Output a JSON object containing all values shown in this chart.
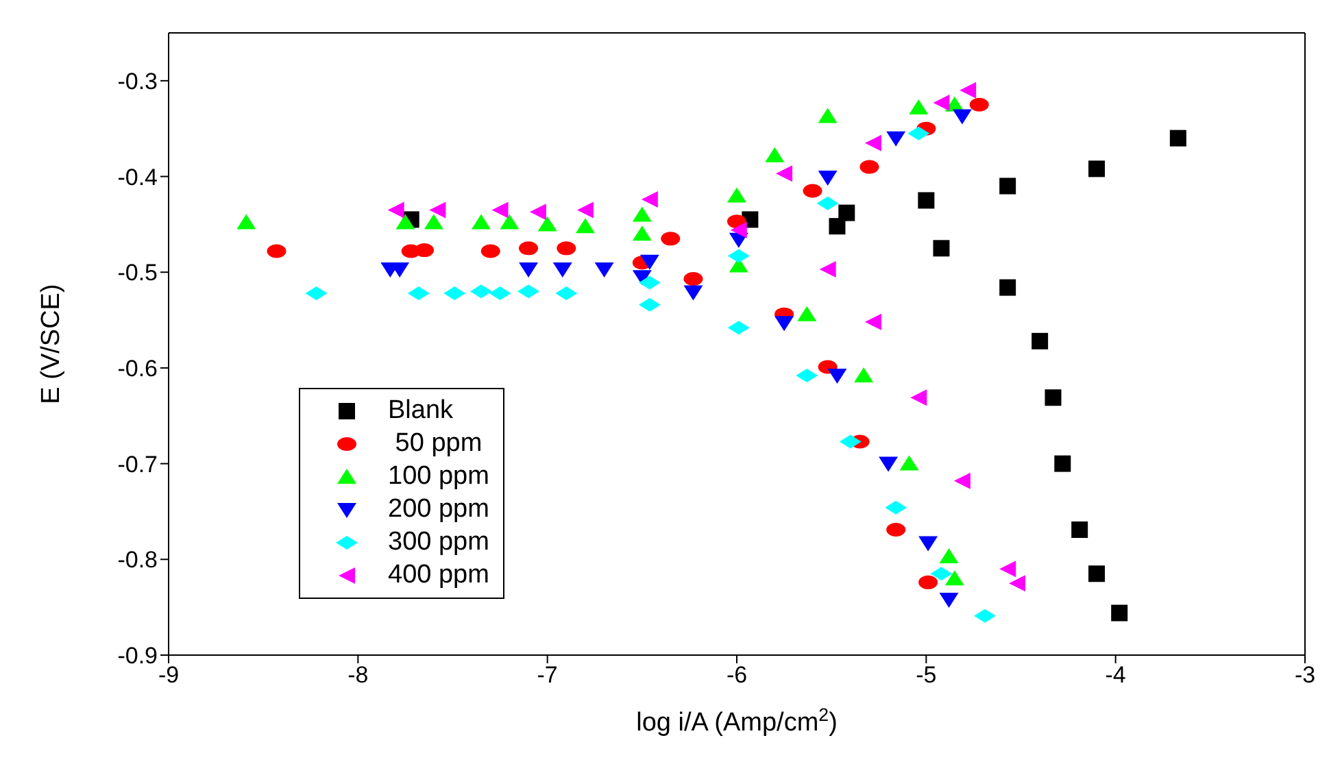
{
  "chart_data": {
    "type": "scatter",
    "xlabel": "log i/A (Amp/cm$^{2}$)",
    "ylabel": "E (V/SCE)",
    "xlim": [
      -9,
      -3
    ],
    "xticks": [
      -9,
      -8,
      -7,
      -6,
      -5,
      -4,
      -3
    ],
    "ylim": [
      -0.9,
      -0.25
    ],
    "yticks": [
      -0.9,
      -0.8,
      -0.7,
      -0.6,
      -0.5,
      -0.4,
      -0.3
    ],
    "legend": "bottom left",
    "series": [
      {
        "name": "Blank",
        "color": "#000000",
        "marker": "square",
        "x": [
          -7.72,
          -5.93,
          -5.42,
          -5.0,
          -4.57,
          -4.1,
          -3.67,
          -5.47,
          -4.92,
          -4.57,
          -4.4,
          -4.33,
          -4.28,
          -4.19,
          -4.1,
          -3.98
        ],
        "values": [
          -0.445,
          -0.445,
          -0.438,
          -0.425,
          -0.41,
          -0.392,
          -0.36,
          -0.452,
          -0.475,
          -0.516,
          -0.572,
          -0.631,
          -0.7,
          -0.769,
          -0.815,
          -0.856
        ]
      },
      {
        "name": " 50 ppm",
        "color": "#ff0000",
        "marker": "circle",
        "x": [
          -8.43,
          -7.72,
          -7.65,
          -7.3,
          -7.1,
          -6.9,
          -6.35,
          -6.0,
          -5.6,
          -5.3,
          -5.0,
          -4.72,
          -6.5,
          -6.23,
          -5.75,
          -5.52,
          -5.35,
          -5.16,
          -4.99
        ],
        "values": [
          -0.478,
          -0.478,
          -0.477,
          -0.478,
          -0.475,
          -0.475,
          -0.465,
          -0.447,
          -0.415,
          -0.39,
          -0.35,
          -0.325,
          -0.49,
          -0.507,
          -0.544,
          -0.599,
          -0.677,
          -0.769,
          -0.824
        ]
      },
      {
        "name": "100 ppm",
        "color": "#00ff00",
        "marker": "triangle",
        "x": [
          -8.59,
          -7.75,
          -7.6,
          -7.35,
          -7.2,
          -7.0,
          -6.8,
          -6.5,
          -6.0,
          -5.8,
          -5.52,
          -5.04,
          -4.85,
          -6.5,
          -5.99,
          -5.63,
          -5.33,
          -5.09,
          -4.88,
          -4.85
        ],
        "values": [
          -0.448,
          -0.448,
          -0.448,
          -0.448,
          -0.448,
          -0.45,
          -0.452,
          -0.44,
          -0.42,
          -0.378,
          -0.337,
          -0.328,
          -0.325,
          -0.46,
          -0.493,
          -0.544,
          -0.608,
          -0.7,
          -0.797,
          -0.82
        ]
      },
      {
        "name": "200 ppm",
        "color": "#0000ff",
        "marker": "triangle-down",
        "x": [
          -7.83,
          -7.78,
          -7.1,
          -6.92,
          -6.7,
          -6.46,
          -5.99,
          -5.52,
          -5.16,
          -4.81,
          -6.5,
          -6.23,
          -5.75,
          -5.47,
          -5.2,
          -4.99,
          -4.88
        ],
        "values": [
          -0.497,
          -0.497,
          -0.497,
          -0.497,
          -0.497,
          -0.489,
          -0.466,
          -0.401,
          -0.36,
          -0.337,
          -0.505,
          -0.521,
          -0.553,
          -0.608,
          -0.7,
          -0.783,
          -0.842
        ]
      },
      {
        "name": "300 ppm",
        "color": "#00ffff",
        "marker": "diamond",
        "x": [
          -8.22,
          -7.68,
          -7.49,
          -7.35,
          -7.25,
          -7.1,
          -6.9,
          -6.46,
          -5.99,
          -5.52,
          -5.04,
          -6.46,
          -5.99,
          -5.63,
          -5.4,
          -5.16,
          -4.92,
          -4.69
        ],
        "values": [
          -0.522,
          -0.522,
          -0.522,
          -0.52,
          -0.522,
          -0.52,
          -0.522,
          -0.511,
          -0.483,
          -0.428,
          -0.355,
          -0.534,
          -0.558,
          -0.608,
          -0.677,
          -0.746,
          -0.815,
          -0.859
        ]
      },
      {
        "name": "400 ppm",
        "color": "#ff00ff",
        "marker": "triangle-left",
        "x": [
          -7.8,
          -7.58,
          -7.25,
          -7.05,
          -6.8,
          -6.46,
          -5.75,
          -5.28,
          -4.92,
          -4.78,
          -5.99,
          -5.52,
          -5.28,
          -5.04,
          -4.81,
          -4.57,
          -4.52
        ],
        "values": [
          -0.435,
          -0.435,
          -0.435,
          -0.437,
          -0.435,
          -0.424,
          -0.397,
          -0.365,
          -0.323,
          -0.31,
          -0.456,
          -0.497,
          -0.552,
          -0.631,
          -0.718,
          -0.81,
          -0.825
        ]
      }
    ]
  }
}
